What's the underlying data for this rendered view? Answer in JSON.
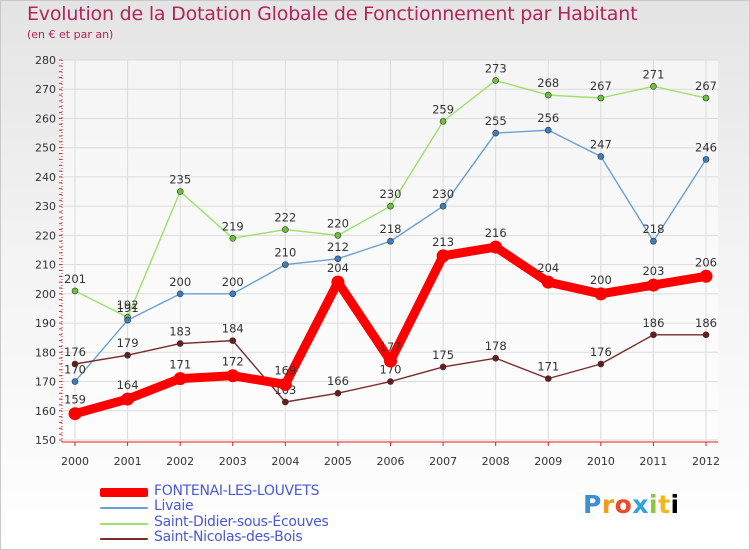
{
  "header": {
    "title": "Evolution de la Dotation Globale de Fonctionnement par Habitant",
    "subtitle": "(en € et par an)"
  },
  "brand": {
    "logo_text": "Proxiti"
  },
  "chart_data": {
    "type": "line",
    "title": "Evolution de la Dotation Globale de Fonctionnement par Habitant",
    "subtitle": "(en € et par an)",
    "xlabel": "",
    "ylabel": "",
    "x": [
      "2000",
      "2001",
      "2002",
      "2003",
      "2004",
      "2005",
      "2006",
      "2007",
      "2008",
      "2009",
      "2010",
      "2011",
      "2012"
    ],
    "ylim": [
      150,
      280
    ],
    "yticks": [
      150,
      160,
      170,
      180,
      190,
      200,
      210,
      220,
      230,
      240,
      250,
      260,
      270,
      280
    ],
    "grid": true,
    "legend_position": "bottom-left",
    "series": [
      {
        "name": "FONTENAI-LES-LOUVETS",
        "color": "#ff0000",
        "marker_color": "#ff0000",
        "values": [
          159,
          164,
          171,
          172,
          169,
          204,
          177,
          213,
          216,
          204,
          200,
          203,
          206
        ]
      },
      {
        "name": "Livaie",
        "color": "#6a9fd4",
        "marker_color": "#3a7fc0",
        "values": [
          170,
          191,
          200,
          200,
          210,
          212,
          218,
          230,
          255,
          256,
          247,
          218,
          246
        ]
      },
      {
        "name": "Saint-Didier-sous-Écouves",
        "color": "#9ee06a",
        "marker_color": "#6ac23a",
        "values": [
          201,
          192,
          235,
          219,
          222,
          220,
          230,
          259,
          273,
          268,
          267,
          271,
          267
        ]
      },
      {
        "name": "Saint-Nicolas-des-Bois",
        "color": "#7a2b2b",
        "marker_color": "#6a1c1c",
        "values": [
          176,
          179,
          183,
          184,
          163,
          166,
          170,
          175,
          178,
          171,
          176,
          186,
          186
        ]
      }
    ]
  }
}
